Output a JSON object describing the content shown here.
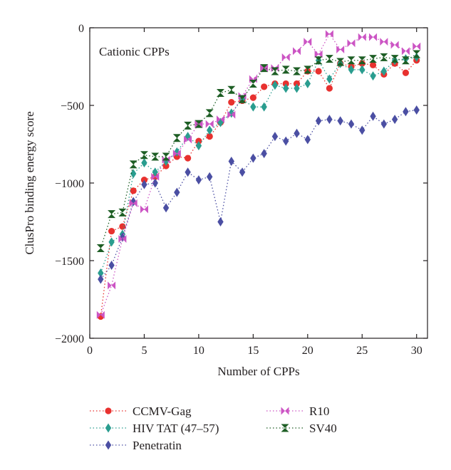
{
  "chart_data": {
    "type": "scatter",
    "annotation": "Cationic CPPs",
    "xlabel": "Number of CPPs",
    "ylabel": "ClusPro binding energy score",
    "xlim": [
      0,
      31
    ],
    "ylim": [
      -2000,
      0
    ],
    "x_ticks": [
      0,
      5,
      10,
      15,
      20,
      25,
      30
    ],
    "y_ticks": [
      0,
      -500,
      -1000,
      -1500,
      -2000
    ],
    "x": [
      1,
      2,
      3,
      4,
      5,
      6,
      7,
      8,
      9,
      10,
      11,
      12,
      13,
      14,
      15,
      16,
      17,
      18,
      19,
      20,
      21,
      22,
      23,
      24,
      25,
      26,
      27,
      28,
      29,
      30
    ],
    "series": [
      {
        "name": "CCMV-Gag",
        "color": "#e8312f",
        "marker": "circle",
        "values": [
          -1860,
          -1310,
          -1280,
          -1050,
          -980,
          -960,
          -890,
          -830,
          -840,
          -730,
          -700,
          -610,
          -480,
          -470,
          -450,
          -380,
          -360,
          -360,
          -360,
          -280,
          -280,
          -390,
          -230,
          -250,
          -230,
          -240,
          -300,
          -230,
          -290,
          -210
        ]
      },
      {
        "name": "HIV TAT (47–57)",
        "color": "#2a9d8f",
        "marker": "diamond",
        "values": [
          -1580,
          -1380,
          -1330,
          -940,
          -870,
          -930,
          -860,
          -800,
          -700,
          -760,
          -660,
          -610,
          -550,
          -460,
          -510,
          -510,
          -370,
          -390,
          -390,
          -360,
          -210,
          -330,
          -230,
          -270,
          -270,
          -310,
          -280,
          -210,
          -200,
          -190
        ]
      },
      {
        "name": "Penetratin",
        "color": "#4b4fa3",
        "marker": "diamond",
        "values": [
          -1620,
          -1530,
          -1350,
          -1120,
          -1010,
          -1000,
          -1160,
          -1060,
          -930,
          -980,
          -960,
          -1250,
          -860,
          -930,
          -840,
          -810,
          -700,
          -730,
          -680,
          -720,
          -600,
          -590,
          -600,
          -620,
          -660,
          -570,
          -620,
          -590,
          -540,
          -530
        ]
      },
      {
        "name": "R10",
        "color": "#cc55c4",
        "marker": "bowtie",
        "values": [
          -1850,
          -1660,
          -1360,
          -1130,
          -1170,
          -960,
          -850,
          -810,
          -720,
          -620,
          -620,
          -590,
          -560,
          -440,
          -330,
          -260,
          -260,
          -190,
          -150,
          -90,
          -170,
          -40,
          -140,
          -100,
          -60,
          -60,
          -90,
          -110,
          -150,
          -120
        ]
      },
      {
        "name": "SV40",
        "color": "#1d5e24",
        "marker": "hourglass",
        "values": [
          -1420,
          -1200,
          -1190,
          -880,
          -820,
          -830,
          -830,
          -710,
          -630,
          -620,
          -550,
          -420,
          -400,
          -460,
          -360,
          -260,
          -280,
          -270,
          -280,
          -270,
          -210,
          -200,
          -220,
          -210,
          -210,
          -200,
          -190,
          -200,
          -210,
          -170
        ]
      }
    ],
    "legend": {
      "placement": "bottom",
      "columns": [
        [
          "CCMV-Gag",
          "HIV TAT (47–57)",
          "Penetratin"
        ],
        [
          "R10",
          "SV40"
        ]
      ]
    }
  }
}
